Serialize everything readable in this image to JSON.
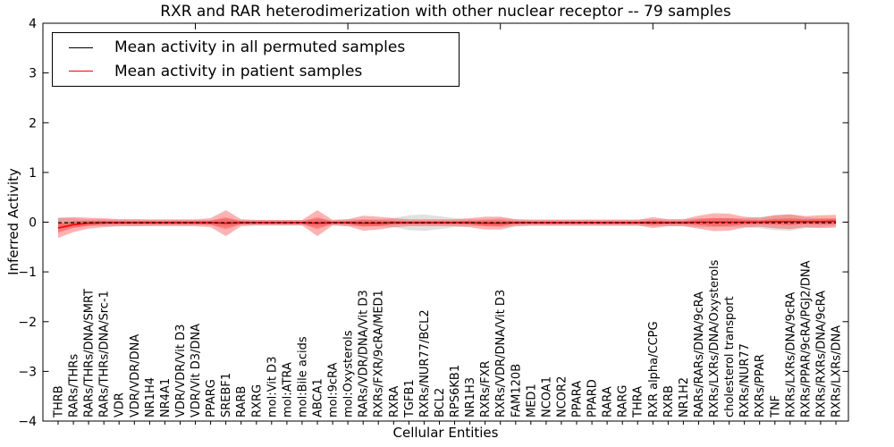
{
  "figure": {
    "title": "RXR and RAR heterodimerization with other nuclear receptor -- 79 samples"
  },
  "chart_data": {
    "type": "line",
    "title": "RXR and RAR heterodimerization with other nuclear receptor -- 79 samples",
    "xlabel": "Cellular Entities",
    "ylabel": "Inferred Activity",
    "ylim": [
      -4,
      4
    ],
    "yticks": [
      4,
      3,
      2,
      1,
      0,
      -1,
      -2,
      -3,
      -4
    ],
    "ytick_labels": [
      "4",
      "3",
      "2",
      "1",
      "0",
      "−1",
      "−2",
      "−3",
      "−4"
    ],
    "grid": false,
    "legend_position": "upper left",
    "major_x_tick_indices": [
      9,
      19,
      29,
      39,
      49
    ],
    "categories": [
      "THRB",
      "RARs/THRs",
      "RARs/THRs/DNA/SMRT",
      "RARs/THRs/DNA/Src-1",
      "VDR",
      "VDR/VDR/DNA",
      "NR1H4",
      "NR4A1",
      "VDR/VDR/Vit D3",
      "VDR/Vit D3/DNA",
      "PPARG",
      "SREBF1",
      "RARB",
      "RXRG",
      "mol:Vit D3",
      "mol:ATRA",
      "mol:Bile acids",
      "ABCA1",
      "mol:9cRA",
      "mol:Oxysterols",
      "RARs/VDR/DNA/Vit D3",
      "RXRs/FXR/9cRA/MED1",
      "RXRA",
      "TGFB1",
      "RXRs/NUR77/BCL2",
      "BCL2",
      "RPS6KB1",
      "NR1H3",
      "RXRs/FXR",
      "RXRs/VDR/DNA/Vit D3",
      "FAM120B",
      "MED1",
      "NCOA1",
      "NCOR2",
      "PPARA",
      "PPARD",
      "RARA",
      "RARG",
      "THRA",
      "RXR alpha/CCPG",
      "RXRB",
      "NR1H2",
      "RARs/RARs/DNA/9cRA",
      "RXRs/LXRs/DNA/Oxysterols",
      "cholesterol transport",
      "RXRs/NUR77",
      "RXRs/PPAR",
      "TNF",
      "RXRs/LXRs/DNA/9cRA",
      "RXRs/PPAR/9cRA/PGJ2/DNA",
      "RXRs/RXRs/DNA/9cRA",
      "RXRs/LXRs/DNA"
    ],
    "series": [
      {
        "name": "Mean activity in all permuted samples",
        "color": "#000000",
        "line_style": "dashed",
        "values": [
          -0.01,
          -0.01,
          -0.01,
          -0.01,
          -0.01,
          -0.01,
          -0.01,
          -0.01,
          -0.01,
          -0.01,
          -0.01,
          -0.01,
          -0.01,
          -0.01,
          -0.01,
          -0.01,
          -0.01,
          -0.01,
          -0.01,
          -0.01,
          -0.01,
          -0.01,
          -0.01,
          -0.01,
          -0.01,
          -0.01,
          -0.01,
          -0.01,
          -0.01,
          -0.01,
          -0.01,
          -0.01,
          -0.01,
          -0.01,
          -0.01,
          -0.01,
          -0.01,
          -0.01,
          -0.01,
          -0.01,
          -0.01,
          -0.01,
          -0.01,
          -0.01,
          -0.01,
          -0.01,
          -0.01,
          -0.01,
          -0.01,
          -0.01,
          -0.01,
          -0.01
        ],
        "band_color": "#aaaaaa",
        "band_opacity": 0.35,
        "band_half_widths": [
          0.11,
          0.09,
          0.07,
          0.07,
          0.07,
          0.07,
          0.055,
          0.055,
          0.055,
          0.055,
          0.055,
          0.07,
          0.055,
          0.055,
          0.055,
          0.055,
          0.055,
          0.07,
          0.055,
          0.07,
          0.07,
          0.07,
          0.09,
          0.15,
          0.165,
          0.13,
          0.09,
          0.07,
          0.07,
          0.09,
          0.07,
          0.07,
          0.07,
          0.07,
          0.07,
          0.07,
          0.07,
          0.07,
          0.07,
          0.07,
          0.07,
          0.07,
          0.09,
          0.09,
          0.09,
          0.09,
          0.11,
          0.15,
          0.165,
          0.11,
          0.09,
          0.07
        ]
      },
      {
        "name": "Mean activity in patient samples",
        "color": "#ff0000",
        "line_style": "solid",
        "values": [
          -0.12,
          -0.05,
          -0.02,
          -0.01,
          -0.01,
          -0.01,
          -0.01,
          -0.01,
          -0.01,
          -0.01,
          -0.01,
          -0.02,
          -0.01,
          -0.01,
          -0.01,
          -0.01,
          -0.01,
          -0.02,
          -0.01,
          -0.01,
          -0.02,
          -0.02,
          -0.01,
          -0.01,
          -0.01,
          -0.01,
          -0.01,
          -0.01,
          -0.02,
          -0.02,
          -0.01,
          -0.01,
          -0.01,
          -0.01,
          -0.01,
          -0.01,
          -0.01,
          -0.01,
          -0.01,
          -0.01,
          -0.01,
          -0.01,
          0.0,
          0.0,
          0.0,
          0.0,
          0.0,
          0.01,
          0.01,
          0.01,
          0.01,
          0.02
        ],
        "band_color": "#ff0000",
        "band_opacity": 0.3,
        "inner_band_ratio": 0.45,
        "band_half_widths": [
          0.2,
          0.15,
          0.11,
          0.09,
          0.07,
          0.07,
          0.07,
          0.07,
          0.07,
          0.07,
          0.09,
          0.26,
          0.07,
          0.055,
          0.055,
          0.055,
          0.055,
          0.26,
          0.055,
          0.07,
          0.15,
          0.13,
          0.09,
          0.07,
          0.07,
          0.07,
          0.07,
          0.09,
          0.13,
          0.13,
          0.07,
          0.055,
          0.055,
          0.055,
          0.055,
          0.055,
          0.055,
          0.055,
          0.055,
          0.11,
          0.07,
          0.07,
          0.13,
          0.18,
          0.17,
          0.11,
          0.09,
          0.13,
          0.15,
          0.11,
          0.13,
          0.13
        ]
      }
    ]
  }
}
